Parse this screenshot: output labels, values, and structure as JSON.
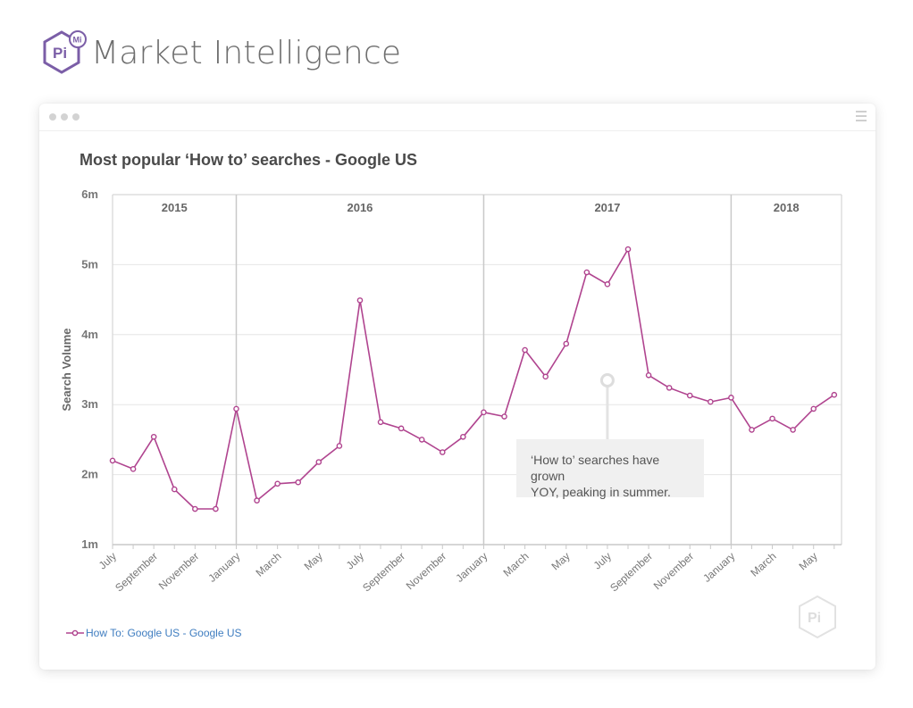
{
  "brand": {
    "name": "Market Intelligence",
    "logo_text": "Pi",
    "logo_badge": "Mi",
    "color": "#7b5ea7"
  },
  "chart_data": {
    "type": "line",
    "title": "Most popular ‘How to’ searches - Google US",
    "ylabel": "Search Volume",
    "xlabel": "",
    "ylim": [
      1000000,
      6000000
    ],
    "yticks": [
      {
        "value": 1000000,
        "label": "1m"
      },
      {
        "value": 2000000,
        "label": "2m"
      },
      {
        "value": 3000000,
        "label": "3m"
      },
      {
        "value": 4000000,
        "label": "4m"
      },
      {
        "value": 5000000,
        "label": "5m"
      },
      {
        "value": 6000000,
        "label": "6m"
      }
    ],
    "x": [
      "2015-07",
      "2015-08",
      "2015-09",
      "2015-10",
      "2015-11",
      "2015-12",
      "2016-01",
      "2016-02",
      "2016-03",
      "2016-04",
      "2016-05",
      "2016-06",
      "2016-07",
      "2016-08",
      "2016-09",
      "2016-10",
      "2016-11",
      "2016-12",
      "2017-01",
      "2017-02",
      "2017-03",
      "2017-04",
      "2017-05",
      "2017-06",
      "2017-07",
      "2017-08",
      "2017-09",
      "2017-10",
      "2017-11",
      "2017-12",
      "2018-01",
      "2018-02",
      "2018-03",
      "2018-04",
      "2018-05",
      "2018-06"
    ],
    "xtick_labels": [
      "July",
      "",
      "September",
      "",
      "November",
      "",
      "January",
      "",
      "March",
      "",
      "May",
      "",
      "July",
      "",
      "September",
      "",
      "November",
      "",
      "January",
      "",
      "March",
      "",
      "May",
      "",
      "July",
      "",
      "September",
      "",
      "November",
      "",
      "January",
      "",
      "March",
      "",
      "May",
      ""
    ],
    "years": [
      {
        "label": "2015",
        "start": 0,
        "end": 6
      },
      {
        "label": "2016",
        "start": 6,
        "end": 18
      },
      {
        "label": "2017",
        "start": 18,
        "end": 30
      },
      {
        "label": "2018",
        "start": 30,
        "end": 35.7
      }
    ],
    "series": [
      {
        "name": "How To: Google US - Google US",
        "color": "#b0448f",
        "values": [
          2200000,
          2080000,
          2540000,
          1790000,
          1510000,
          1510000,
          2940000,
          1630000,
          1870000,
          1890000,
          2180000,
          2410000,
          4490000,
          2750000,
          2660000,
          2500000,
          2320000,
          2540000,
          2890000,
          2830000,
          3780000,
          3400000,
          3870000,
          4890000,
          4720000,
          5220000,
          3420000,
          3240000,
          3130000,
          3040000,
          3100000,
          2640000,
          2800000,
          2640000,
          2940000,
          3140000
        ]
      }
    ],
    "annotation": {
      "text_line1": "‘How to’ searches have grown",
      "text_line2": "YOY, peaking in summer."
    },
    "grid": true,
    "legend_position": "bottom-left"
  },
  "watermark": {
    "text": "Pi"
  }
}
